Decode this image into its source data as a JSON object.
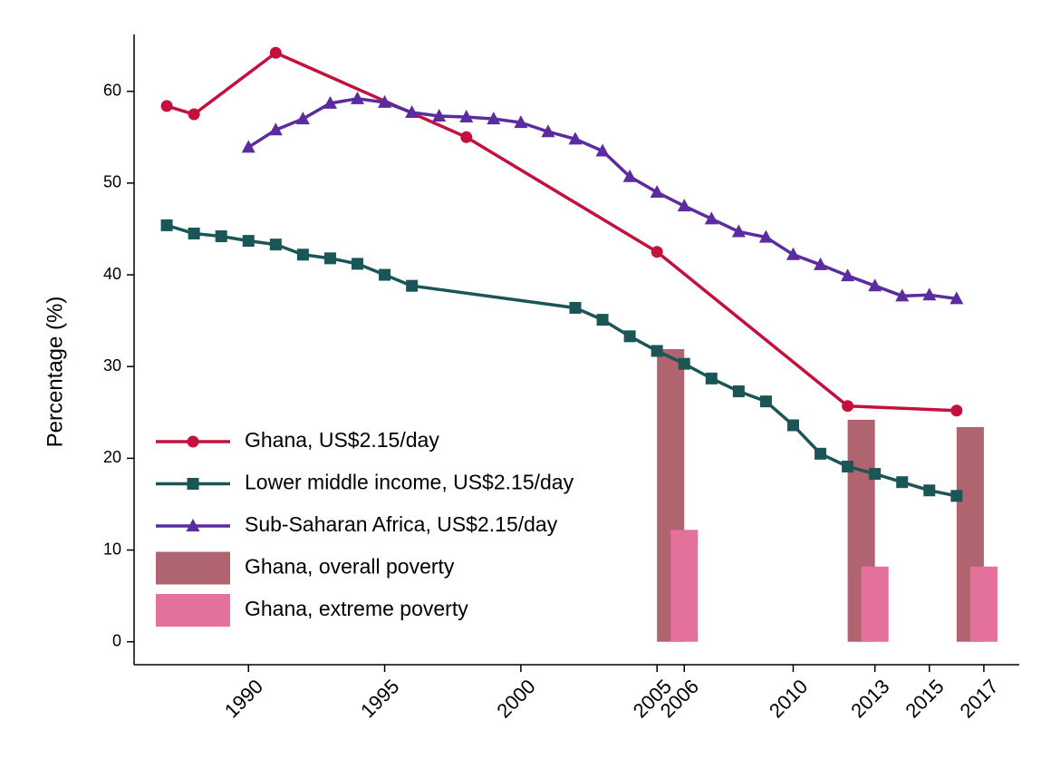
{
  "chart_data": {
    "type": "line",
    "y_label": "Percentage (%)",
    "xlim": [
      1985.8,
      2018.3
    ],
    "xticks": [
      1990,
      1995,
      2000,
      2005,
      2006,
      2010,
      2013,
      2015,
      2017
    ],
    "ylim": [
      -2.5,
      66.2
    ],
    "yticks": [
      0,
      10,
      20,
      30,
      40,
      50,
      60
    ],
    "grid": false,
    "legend": "lower left",
    "series": [
      {
        "name": "Ghana, US$2.15/day",
        "type": "line",
        "marker": "circle",
        "color": "#c4103c",
        "x": [
          1987,
          1988,
          1991,
          1998,
          2005,
          2012,
          2016
        ],
        "values": [
          58.4,
          57.5,
          64.2,
          55.0,
          42.5,
          25.7,
          25.2
        ]
      },
      {
        "name": "Lower middle income, US$2.15/day",
        "type": "line",
        "marker": "square",
        "color": "#1a5656",
        "x": [
          1987,
          1988,
          1989,
          1990,
          1991,
          1992,
          1993,
          1994,
          1995,
          1996,
          2002,
          2003,
          2004,
          2005,
          2006,
          2007,
          2008,
          2009,
          2010,
          2011,
          2012,
          2013,
          2014,
          2015,
          2016
        ],
        "values": [
          45.4,
          44.5,
          44.2,
          43.7,
          43.3,
          42.2,
          41.8,
          41.2,
          40.0,
          38.8,
          36.4,
          35.1,
          33.3,
          31.7,
          30.3,
          28.7,
          27.3,
          26.2,
          23.6,
          20.5,
          19.1,
          18.3,
          17.4,
          16.5,
          15.9
        ]
      },
      {
        "name": "Sub-Saharan Africa, US$2.15/day",
        "type": "line",
        "marker": "triangle",
        "color": "#5a2ca0",
        "x": [
          1990,
          1991,
          1992,
          1993,
          1994,
          1995,
          1996,
          1997,
          1998,
          1999,
          2000,
          2001,
          2002,
          2003,
          2004,
          2005,
          2006,
          2007,
          2008,
          2009,
          2010,
          2011,
          2012,
          2013,
          2014,
          2015,
          2016
        ],
        "values": [
          53.9,
          55.8,
          57.0,
          58.7,
          59.2,
          58.8,
          57.7,
          57.3,
          57.2,
          57.0,
          56.6,
          55.6,
          54.8,
          53.5,
          50.7,
          49.0,
          47.5,
          46.1,
          44.7,
          44.1,
          42.2,
          41.1,
          39.9,
          38.8,
          37.7,
          37.8,
          37.4
        ]
      },
      {
        "name": "Ghana, overall poverty",
        "type": "bar",
        "color": "#b06470",
        "x": [
          2005.5,
          2012.5,
          2016.5
        ],
        "values": [
          31.9,
          24.2,
          23.4
        ]
      },
      {
        "name": "Ghana, extreme poverty",
        "type": "bar",
        "color": "#e4709c",
        "x": [
          2006,
          2013,
          2017
        ],
        "values": [
          12.2,
          8.2,
          8.2
        ]
      }
    ]
  }
}
